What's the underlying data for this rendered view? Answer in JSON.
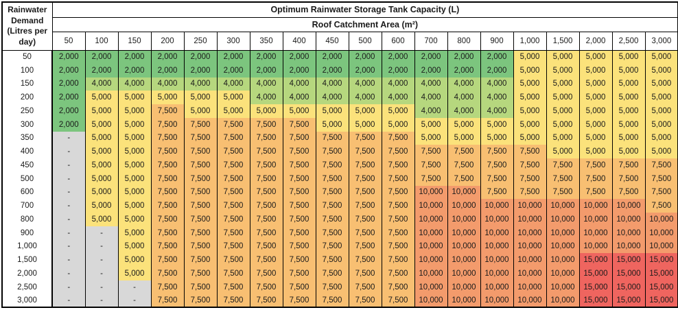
{
  "table": {
    "corner_header": "Rainwater Demand (Litres per day)",
    "title": "Optimum Rainwater Storage Tank Capacity (L)",
    "subtitle": "Roof Catchment Area (m²)"
  },
  "colors": {
    "border": "#000000",
    "header_bg": "#ffffff",
    "text": "#1a1a1a",
    "no_data_bg": "#d8d8d8",
    "value_colors": {
      "2,000": "#7cc57e",
      "4,000": "#b6d77e",
      "5,000": "#fbe27b",
      "7,500": "#f8bf72",
      "10,000": "#f39b6c",
      "15,000": "#ef655f",
      "-": "#d8d8d8"
    }
  },
  "chart_data": {
    "type": "heatmap",
    "title": "Optimum Rainwater Storage Tank Capacity (L)",
    "x_axis_label": "Roof Catchment Area (m²)",
    "y_axis_label": "Rainwater Demand (Litres per day)",
    "units": "L",
    "legend": "none (color scale green=small tank through red=large tank, grey dash = no data)",
    "columns": [
      "50",
      "100",
      "150",
      "200",
      "250",
      "300",
      "350",
      "400",
      "450",
      "500",
      "600",
      "700",
      "800",
      "900",
      "1,000",
      "1,500",
      "2,000",
      "2,500",
      "3,000"
    ],
    "rows": [
      {
        "demand": "50",
        "values": [
          "2,000",
          "2,000",
          "2,000",
          "2,000",
          "2,000",
          "2,000",
          "2,000",
          "2,000",
          "2,000",
          "2,000",
          "2,000",
          "2,000",
          "2,000",
          "2,000",
          "5,000",
          "5,000",
          "5,000",
          "5,000",
          "5,000"
        ]
      },
      {
        "demand": "100",
        "values": [
          "2,000",
          "2,000",
          "2,000",
          "2,000",
          "2,000",
          "2,000",
          "2,000",
          "2,000",
          "2,000",
          "2,000",
          "2,000",
          "2,000",
          "2,000",
          "2,000",
          "5,000",
          "5,000",
          "5,000",
          "5,000",
          "5,000"
        ]
      },
      {
        "demand": "150",
        "values": [
          "2,000",
          "4,000",
          "4,000",
          "4,000",
          "4,000",
          "4,000",
          "4,000",
          "4,000",
          "4,000",
          "4,000",
          "4,000",
          "4,000",
          "4,000",
          "4,000",
          "5,000",
          "5,000",
          "5,000",
          "5,000",
          "5,000"
        ]
      },
      {
        "demand": "200",
        "values": [
          "2,000",
          "5,000",
          "5,000",
          "5,000",
          "5,000",
          "5,000",
          "4,000",
          "4,000",
          "4,000",
          "4,000",
          "4,000",
          "4,000",
          "4,000",
          "4,000",
          "5,000",
          "5,000",
          "5,000",
          "5,000",
          "5,000"
        ]
      },
      {
        "demand": "250",
        "values": [
          "2,000",
          "5,000",
          "5,000",
          "7,500",
          "5,000",
          "5,000",
          "5,000",
          "5,000",
          "5,000",
          "5,000",
          "5,000",
          "4,000",
          "4,000",
          "4,000",
          "5,000",
          "5,000",
          "5,000",
          "5,000",
          "5,000"
        ]
      },
      {
        "demand": "300",
        "values": [
          "2,000",
          "5,000",
          "5,000",
          "7,500",
          "7,500",
          "7,500",
          "7,500",
          "7,500",
          "5,000",
          "5,000",
          "5,000",
          "5,000",
          "5,000",
          "5,000",
          "5,000",
          "5,000",
          "5,000",
          "5,000",
          "5,000"
        ]
      },
      {
        "demand": "350",
        "values": [
          "-",
          "5,000",
          "5,000",
          "7,500",
          "7,500",
          "7,500",
          "7,500",
          "7,500",
          "7,500",
          "7,500",
          "7,500",
          "5,000",
          "5,000",
          "5,000",
          "5,000",
          "5,000",
          "5,000",
          "5,000",
          "5,000"
        ]
      },
      {
        "demand": "400",
        "values": [
          "-",
          "5,000",
          "5,000",
          "7,500",
          "7,500",
          "7,500",
          "7,500",
          "7,500",
          "7,500",
          "7,500",
          "7,500",
          "7,500",
          "7,500",
          "7,500",
          "7,500",
          "5,000",
          "5,000",
          "5,000",
          "5,000"
        ]
      },
      {
        "demand": "450",
        "values": [
          "-",
          "5,000",
          "5,000",
          "7,500",
          "7,500",
          "7,500",
          "7,500",
          "7,500",
          "7,500",
          "7,500",
          "7,500",
          "7,500",
          "7,500",
          "7,500",
          "7,500",
          "7,500",
          "7,500",
          "7,500",
          "7,500"
        ]
      },
      {
        "demand": "500",
        "values": [
          "-",
          "5,000",
          "5,000",
          "7,500",
          "7,500",
          "7,500",
          "7,500",
          "7,500",
          "7,500",
          "7,500",
          "7,500",
          "7,500",
          "7,500",
          "7,500",
          "7,500",
          "7,500",
          "7,500",
          "7,500",
          "7,500"
        ]
      },
      {
        "demand": "600",
        "values": [
          "-",
          "5,000",
          "5,000",
          "7,500",
          "7,500",
          "7,500",
          "7,500",
          "7,500",
          "7,500",
          "7,500",
          "7,500",
          "10,000",
          "10,000",
          "7,500",
          "7,500",
          "7,500",
          "7,500",
          "7,500",
          "7,500"
        ]
      },
      {
        "demand": "700",
        "values": [
          "-",
          "5,000",
          "5,000",
          "7,500",
          "7,500",
          "7,500",
          "7,500",
          "7,500",
          "7,500",
          "7,500",
          "7,500",
          "10,000",
          "10,000",
          "10,000",
          "10,000",
          "10,000",
          "10,000",
          "10,000",
          "7,500"
        ]
      },
      {
        "demand": "800",
        "values": [
          "-",
          "5,000",
          "5,000",
          "7,500",
          "7,500",
          "7,500",
          "7,500",
          "7,500",
          "7,500",
          "7,500",
          "7,500",
          "10,000",
          "10,000",
          "10,000",
          "10,000",
          "10,000",
          "10,000",
          "10,000",
          "10,000"
        ]
      },
      {
        "demand": "900",
        "values": [
          "-",
          "-",
          "5,000",
          "7,500",
          "7,500",
          "7,500",
          "7,500",
          "7,500",
          "7,500",
          "7,500",
          "7,500",
          "10,000",
          "10,000",
          "10,000",
          "10,000",
          "10,000",
          "10,000",
          "10,000",
          "10,000"
        ]
      },
      {
        "demand": "1,000",
        "values": [
          "-",
          "-",
          "5,000",
          "7,500",
          "7,500",
          "7,500",
          "7,500",
          "7,500",
          "7,500",
          "7,500",
          "7,500",
          "10,000",
          "10,000",
          "10,000",
          "10,000",
          "10,000",
          "10,000",
          "10,000",
          "10,000"
        ]
      },
      {
        "demand": "1,500",
        "values": [
          "-",
          "-",
          "5,000",
          "7,500",
          "7,500",
          "7,500",
          "7,500",
          "7,500",
          "7,500",
          "7,500",
          "7,500",
          "10,000",
          "10,000",
          "10,000",
          "10,000",
          "10,000",
          "15,000",
          "15,000",
          "15,000"
        ]
      },
      {
        "demand": "2,000",
        "values": [
          "-",
          "-",
          "5,000",
          "7,500",
          "7,500",
          "7,500",
          "7,500",
          "7,500",
          "7,500",
          "7,500",
          "7,500",
          "10,000",
          "10,000",
          "10,000",
          "10,000",
          "10,000",
          "15,000",
          "15,000",
          "15,000"
        ]
      },
      {
        "demand": "2,500",
        "values": [
          "-",
          "-",
          "-",
          "7,500",
          "7,500",
          "7,500",
          "7,500",
          "7,500",
          "7,500",
          "7,500",
          "7,500",
          "10,000",
          "10,000",
          "10,000",
          "10,000",
          "10,000",
          "15,000",
          "15,000",
          "15,000"
        ]
      },
      {
        "demand": "3,000",
        "values": [
          "-",
          "-",
          "-",
          "7,500",
          "7,500",
          "7,500",
          "7,500",
          "7,500",
          "7,500",
          "7,500",
          "7,500",
          "10,000",
          "10,000",
          "10,000",
          "10,000",
          "10,000",
          "15,000",
          "15,000",
          "15,000"
        ]
      }
    ]
  }
}
